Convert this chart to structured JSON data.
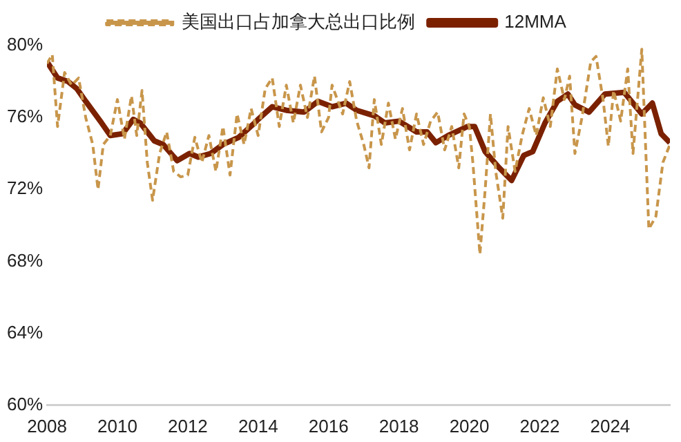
{
  "chart_data": {
    "type": "line",
    "legend": "top",
    "grid": false,
    "xlim": [
      2008,
      2025.7
    ],
    "xticks": [
      2008,
      2010,
      2012,
      2014,
      2016,
      2018,
      2020,
      2022,
      2024
    ],
    "ylim": [
      60,
      80
    ],
    "yticks": [
      {
        "value": 60,
        "label": "60%"
      },
      {
        "value": 64,
        "label": "64%"
      },
      {
        "value": 68,
        "label": "68%"
      },
      {
        "value": 72,
        "label": "72%"
      },
      {
        "value": 76,
        "label": "76%"
      },
      {
        "value": 80,
        "label": "80%"
      }
    ],
    "series": [
      {
        "name": "美国出口占加拿大总出口比例",
        "color": "#c8964b",
        "line_style": "dashed",
        "x": [
          2008.0,
          2008.15,
          2008.3,
          2008.5,
          2008.7,
          2008.9,
          2009.1,
          2009.3,
          2009.45,
          2009.6,
          2009.8,
          2010.0,
          2010.2,
          2010.4,
          2010.55,
          2010.7,
          2010.85,
          2011.0,
          2011.2,
          2011.4,
          2011.6,
          2011.8,
          2012.0,
          2012.2,
          2012.4,
          2012.6,
          2012.8,
          2013.0,
          2013.2,
          2013.4,
          2013.6,
          2013.8,
          2014.0,
          2014.2,
          2014.4,
          2014.6,
          2014.8,
          2015.0,
          2015.2,
          2015.4,
          2015.6,
          2015.8,
          2016.0,
          2016.1,
          2016.4,
          2016.6,
          2016.8,
          2017.0,
          2017.15,
          2017.3,
          2017.5,
          2017.7,
          2017.9,
          2018.1,
          2018.3,
          2018.5,
          2018.7,
          2018.9,
          2019.1,
          2019.3,
          2019.5,
          2019.7,
          2019.85,
          2020.0,
          2020.1,
          2020.3,
          2020.45,
          2020.6,
          2020.75,
          2020.95,
          2021.1,
          2021.3,
          2021.5,
          2021.7,
          2021.9,
          2022.1,
          2022.3,
          2022.5,
          2022.7,
          2022.85,
          2023.0,
          2023.2,
          2023.45,
          2023.6,
          2023.8,
          2023.95,
          2024.1,
          2024.3,
          2024.5,
          2024.65,
          2024.9,
          2025.1,
          2025.3,
          2025.5,
          2025.7
        ],
        "values": [
          79.0,
          79.5,
          75.5,
          78.5,
          77.8,
          78.2,
          76.0,
          74.5,
          72.0,
          74.5,
          75.0,
          77.0,
          74.8,
          77.2,
          75.0,
          77.5,
          73.5,
          71.4,
          74.0,
          75.2,
          73.0,
          72.7,
          72.8,
          74.9,
          73.5,
          75.0,
          73.0,
          75.5,
          72.8,
          76.2,
          74.5,
          76.5,
          75.0,
          77.6,
          78.2,
          75.5,
          77.8,
          75.7,
          77.8,
          76.0,
          78.3,
          75.2,
          76.0,
          77.8,
          76.2,
          78.0,
          75.8,
          74.5,
          73.2,
          77.0,
          74.5,
          76.8,
          74.8,
          76.5,
          74.2,
          76.2,
          74.5,
          75.8,
          76.3,
          74.2,
          75.5,
          73.2,
          76.2,
          75.5,
          73.5,
          68.4,
          72.0,
          76.2,
          73.0,
          70.4,
          75.5,
          73.0,
          75.0,
          76.5,
          75.0,
          77.1,
          75.5,
          78.7,
          77.0,
          78.3,
          74.0,
          76.0,
          79.1,
          79.4,
          77.0,
          74.4,
          77.5,
          75.8,
          78.7,
          74.0,
          79.8,
          69.8,
          70.5,
          73.5,
          74.5
        ]
      },
      {
        "name": "12MMA",
        "color": "#7b2100",
        "line_style": "solid",
        "x": [
          2008.0,
          2008.1,
          2008.3,
          2008.6,
          2008.85,
          2009.1,
          2009.55,
          2009.8,
          2010.15,
          2010.45,
          2010.65,
          2011.05,
          2011.3,
          2011.7,
          2012.05,
          2012.3,
          2012.65,
          2013.0,
          2013.45,
          2013.9,
          2014.0,
          2014.4,
          2014.8,
          2015.3,
          2015.7,
          2016.1,
          2016.5,
          2016.8,
          2017.3,
          2017.6,
          2018.0,
          2018.5,
          2018.8,
          2019.05,
          2019.4,
          2019.95,
          2020.15,
          2020.45,
          2020.85,
          2021.2,
          2021.55,
          2021.8,
          2022.15,
          2022.5,
          2022.8,
          2023.0,
          2023.4,
          2023.85,
          2024.4,
          2024.9,
          2025.2,
          2025.45,
          2025.7
        ],
        "values": [
          79.1,
          78.8,
          78.2,
          78.0,
          77.6,
          76.9,
          75.7,
          75.0,
          75.1,
          75.9,
          75.7,
          74.7,
          74.5,
          73.6,
          74.0,
          73.8,
          74.0,
          74.5,
          74.9,
          75.7,
          75.9,
          76.6,
          76.4,
          76.3,
          76.9,
          76.6,
          76.8,
          76.4,
          76.1,
          75.7,
          75.8,
          75.2,
          75.2,
          74.6,
          75.0,
          75.5,
          75.5,
          74.1,
          73.2,
          72.5,
          73.9,
          74.1,
          75.7,
          76.9,
          77.3,
          76.7,
          76.3,
          77.3,
          77.4,
          76.2,
          76.8,
          75.1,
          74.6
        ]
      }
    ]
  }
}
